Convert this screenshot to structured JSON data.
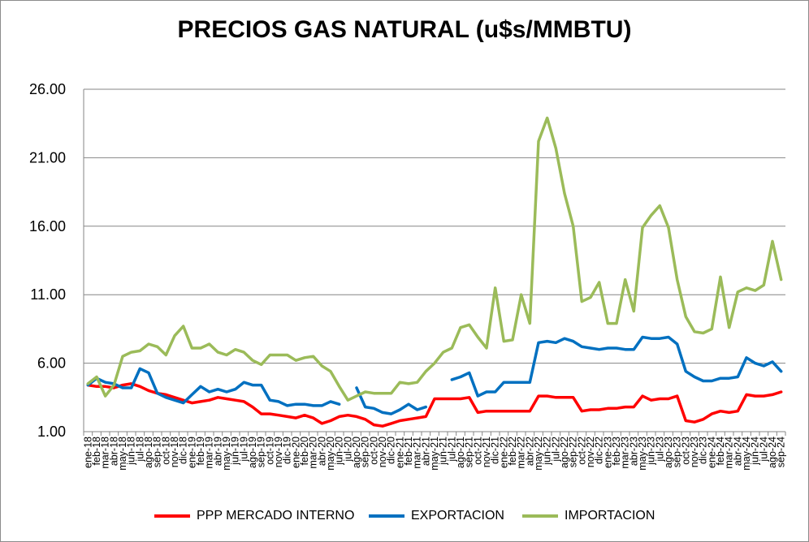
{
  "chart_data": {
    "type": "line",
    "title": "PRECIOS GAS NATURAL (u$s/MMBTU)",
    "xlabel": "",
    "ylabel": "",
    "ylim": [
      1,
      26
    ],
    "yticks": [
      "1.00",
      "6.00",
      "11.00",
      "16.00",
      "21.00",
      "26.00"
    ],
    "grid": true,
    "legend": "bottom",
    "x": [
      "ene-18",
      "feb-18",
      "mar-18",
      "abr-18",
      "may-18",
      "jun-18",
      "jul-18",
      "ago-18",
      "sep-18",
      "oct-18",
      "nov-18",
      "dic-18",
      "ene-19",
      "feb-19",
      "mar-19",
      "abr-19",
      "may-19",
      "jun-19",
      "jul-19",
      "ago-19",
      "sep-19",
      "oct-19",
      "nov-19",
      "dic-19",
      "ene-20",
      "feb-20",
      "mar-20",
      "abr-20",
      "may-20",
      "jun-20",
      "jul-20",
      "ago-20",
      "sep-20",
      "oct-20",
      "nov-20",
      "dic-20",
      "ene-21",
      "feb-21",
      "mar-21",
      "abr-21",
      "may-21",
      "jun-21",
      "jul-21",
      "ago-21",
      "sep-21",
      "oct-21",
      "nov-21",
      "dic-21",
      "ene-22",
      "feb-22",
      "mar-22",
      "abr-22",
      "may-22",
      "jun-22",
      "jul-22",
      "ago-22",
      "sep-22",
      "oct-22",
      "nov-22",
      "dic-22",
      "ene-23",
      "feb-23",
      "mar-23",
      "abr-23",
      "may-23",
      "jun-23",
      "jul-23",
      "ago-23",
      "sep-23",
      "oct-23",
      "nov-23",
      "dic-23",
      "ene-24",
      "feb-24",
      "mar-24",
      "abr-24",
      "may-24",
      "jun-24",
      "jul-24",
      "ago-24",
      "sep-24"
    ],
    "series": [
      {
        "name": "PPP MERCADO INTERNO",
        "color": "#ff0000",
        "values": [
          4.4,
          4.3,
          4.3,
          4.2,
          4.4,
          4.5,
          4.3,
          4.0,
          3.8,
          3.7,
          3.5,
          3.3,
          3.1,
          3.2,
          3.3,
          3.5,
          3.4,
          3.3,
          3.2,
          2.8,
          2.3,
          2.3,
          2.2,
          2.1,
          2.0,
          2.2,
          2.0,
          1.6,
          1.8,
          2.1,
          2.2,
          2.1,
          1.9,
          1.5,
          1.4,
          1.6,
          1.8,
          1.9,
          2.0,
          2.1,
          3.4,
          3.4,
          3.4,
          3.4,
          3.5,
          2.4,
          2.5,
          2.5,
          2.5,
          2.5,
          2.5,
          2.5,
          3.6,
          3.6,
          3.5,
          3.5,
          3.5,
          2.5,
          2.6,
          2.6,
          2.7,
          2.7,
          2.8,
          2.8,
          3.6,
          3.3,
          3.4,
          3.4,
          3.6,
          1.8,
          1.7,
          1.9,
          2.3,
          2.5,
          2.4,
          2.5,
          3.7,
          3.6,
          3.6,
          3.7,
          3.9
        ]
      },
      {
        "name": "EXPORTACION",
        "color": "#0070c0",
        "values": [
          4.4,
          4.9,
          4.6,
          4.5,
          4.2,
          4.2,
          5.6,
          5.3,
          3.8,
          3.5,
          3.3,
          3.1,
          3.7,
          4.3,
          3.9,
          4.1,
          3.9,
          4.1,
          4.6,
          4.4,
          4.4,
          3.3,
          3.2,
          2.9,
          3.0,
          3.0,
          2.9,
          2.9,
          3.2,
          3.0,
          null,
          4.2,
          2.8,
          2.7,
          2.4,
          2.3,
          2.6,
          3.0,
          2.6,
          2.8,
          null,
          null,
          4.8,
          5.0,
          5.3,
          3.6,
          3.9,
          3.9,
          4.6,
          4.6,
          4.6,
          4.6,
          7.5,
          7.6,
          7.5,
          7.8,
          7.6,
          7.2,
          7.1,
          7.0,
          7.1,
          7.1,
          7.0,
          7.0,
          7.9,
          7.8,
          7.8,
          7.9,
          7.4,
          5.4,
          5.0,
          4.7,
          4.7,
          4.9,
          4.9,
          5.0,
          6.4,
          6.0,
          5.8,
          6.1,
          5.4
        ]
      },
      {
        "name": "IMPORTACION",
        "color": "#9bbb59",
        "values": [
          4.5,
          5.0,
          3.6,
          4.4,
          6.5,
          6.8,
          6.9,
          7.4,
          7.2,
          6.6,
          8.0,
          8.7,
          7.1,
          7.1,
          7.4,
          6.8,
          6.6,
          7.0,
          6.8,
          6.2,
          5.9,
          6.6,
          6.6,
          6.6,
          6.2,
          6.4,
          6.5,
          5.8,
          5.4,
          4.3,
          3.3,
          3.6,
          3.9,
          3.8,
          3.8,
          3.8,
          4.6,
          4.5,
          4.6,
          5.4,
          6.0,
          6.8,
          7.1,
          8.6,
          8.8,
          7.9,
          7.1,
          11.5,
          7.6,
          7.7,
          11.0,
          8.9,
          22.2,
          23.9,
          21.7,
          18.4,
          16.0,
          10.5,
          10.8,
          11.9,
          8.9,
          8.9,
          12.1,
          9.8,
          15.9,
          16.8,
          17.5,
          15.9,
          12.1,
          9.4,
          8.3,
          8.2,
          8.5,
          12.3,
          8.6,
          11.2,
          11.5,
          11.3,
          11.7,
          14.9,
          12.1
        ]
      }
    ]
  }
}
